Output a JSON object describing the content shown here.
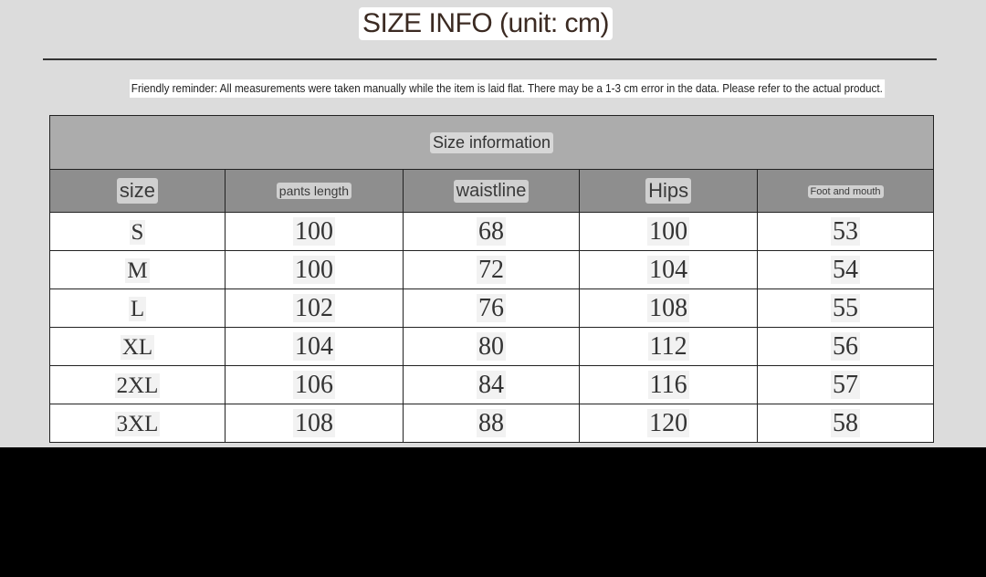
{
  "title": "SIZE INFO (unit: cm)",
  "reminder": "Friendly reminder: All measurements were taken manually while the item is laid flat. There may be a 1-3 cm error in the data. Please refer to the actual product.",
  "table": {
    "caption": "Size information",
    "headers": [
      "size",
      "pants length",
      "waistline",
      "Hips",
      "Foot and mouth"
    ],
    "rows": [
      [
        "S",
        "100",
        "68",
        "100",
        "53"
      ],
      [
        "M",
        "100",
        "72",
        "104",
        "54"
      ],
      [
        "L",
        "102",
        "76",
        "108",
        "55"
      ],
      [
        "XL",
        "104",
        "80",
        "112",
        "56"
      ],
      [
        "2XL",
        "106",
        "84",
        "116",
        "57"
      ],
      [
        "3XL",
        "108",
        "88",
        "120",
        "58"
      ]
    ]
  }
}
